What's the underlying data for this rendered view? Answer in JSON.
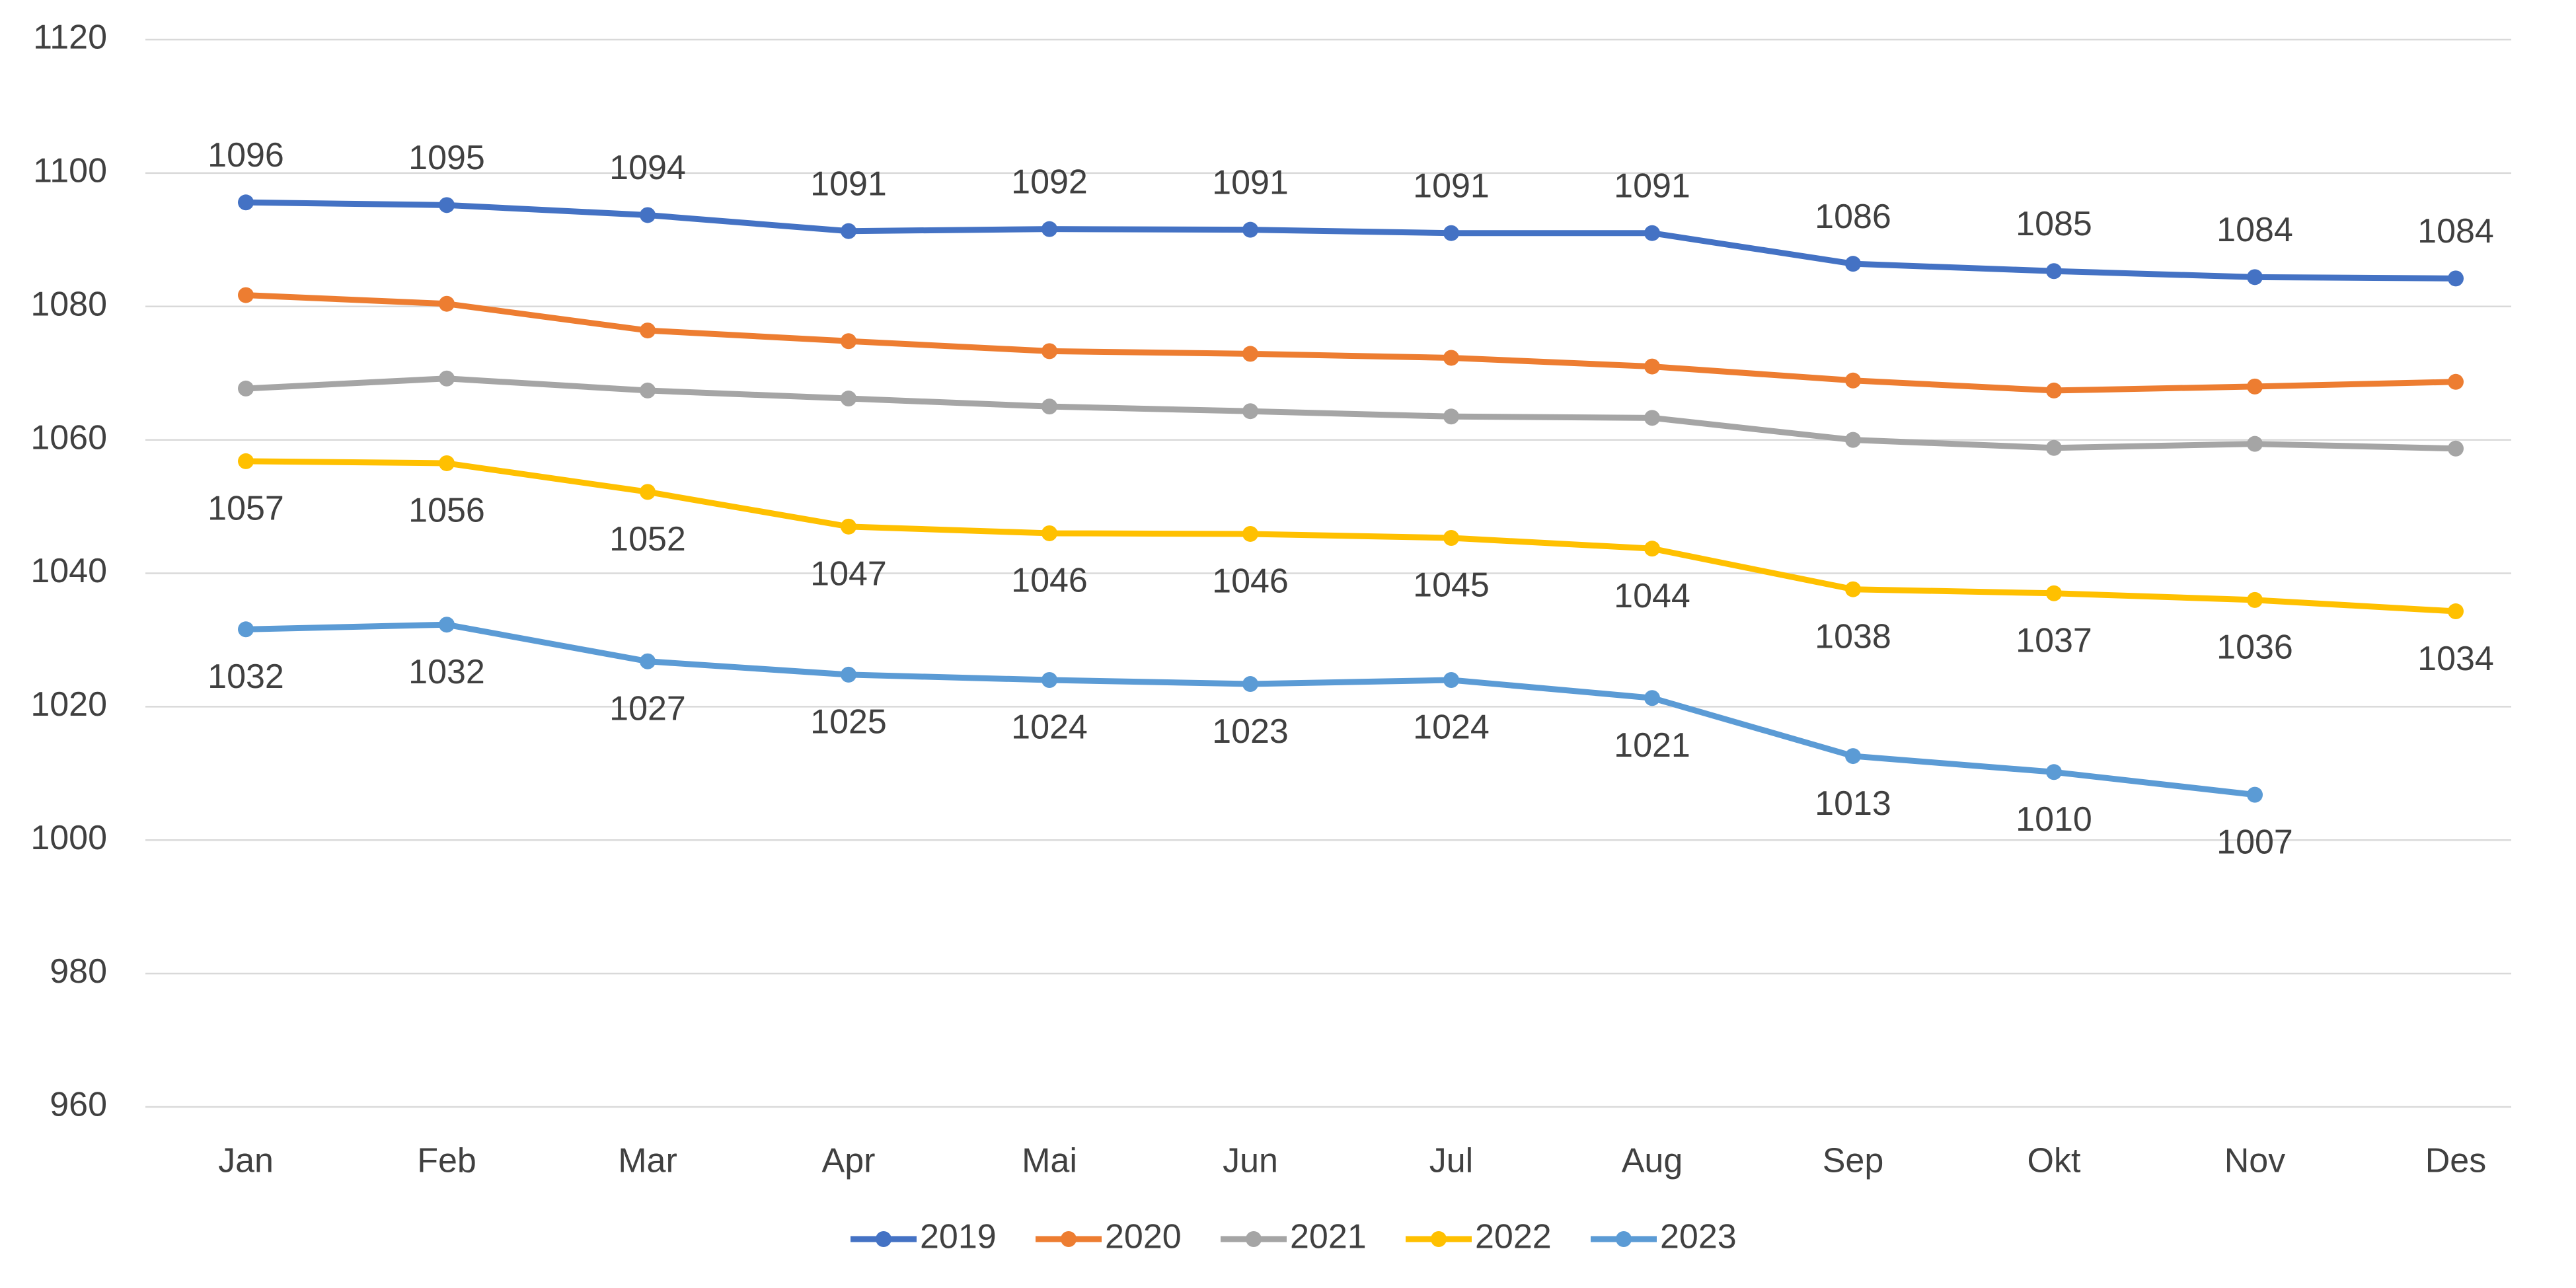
{
  "chart_data": {
    "type": "line",
    "categories": [
      "Jan",
      "Feb",
      "Mar",
      "Apr",
      "Mai",
      "Jun",
      "Jul",
      "Aug",
      "Sep",
      "Okt",
      "Nov",
      "Des"
    ],
    "series": [
      {
        "name": "2019",
        "color": "#4472c4",
        "values": [
          1095.6,
          1095.2,
          1093.7,
          1091.3,
          1091.6,
          1091.5,
          1091.0,
          1091.0,
          1086.4,
          1085.3,
          1084.4,
          1084.2
        ],
        "value_labels": [
          "1096",
          "1095",
          "1094",
          "1091",
          "1092",
          "1091",
          "1091",
          "1091",
          "1086",
          "1085",
          "1084",
          "1084"
        ]
      },
      {
        "name": "2020",
        "color": "#ed7d31",
        "values": [
          1081.7,
          1080.4,
          1076.4,
          1074.8,
          1073.3,
          1072.9,
          1072.3,
          1071.0,
          1068.9,
          1067.4,
          1068.0,
          1068.7
        ]
      },
      {
        "name": "2021",
        "color": "#a5a5a5",
        "values": [
          1067.7,
          1069.2,
          1067.4,
          1066.2,
          1065.0,
          1064.3,
          1063.5,
          1063.3,
          1060.0,
          1058.8,
          1059.4,
          1058.7
        ]
      },
      {
        "name": "2022",
        "color": "#ffc000",
        "values": [
          1056.8,
          1056.5,
          1052.2,
          1047.0,
          1046.0,
          1045.9,
          1045.3,
          1043.7,
          1037.6,
          1037.0,
          1036.0,
          1034.3
        ],
        "value_labels": [
          "1057",
          "1056",
          "1052",
          "1047",
          "1046",
          "1046",
          "1045",
          "1044",
          "1038",
          "1037",
          "1036",
          "1034"
        ]
      },
      {
        "name": "2023",
        "color": "#5b9bd5",
        "values": [
          1031.6,
          1032.3,
          1026.8,
          1024.8,
          1024.0,
          1023.4,
          1024.0,
          1021.3,
          1012.6,
          1010.2,
          1006.8,
          null
        ],
        "value_labels": [
          "1032",
          "1032",
          "1027",
          "1025",
          "1024",
          "1023",
          "1024",
          "1021",
          "1013",
          "1010",
          "1007",
          null
        ]
      }
    ],
    "ylim": [
      960,
      1120
    ],
    "yticks": [
      960,
      980,
      1000,
      1020,
      1040,
      1060,
      1080,
      1100,
      1120
    ],
    "grid": true,
    "legend": "bottom"
  }
}
